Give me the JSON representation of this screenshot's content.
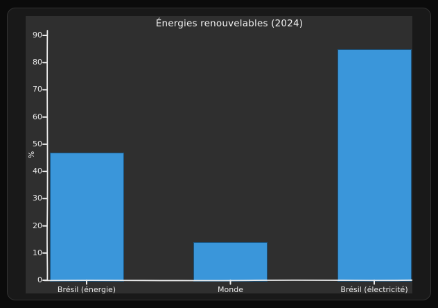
{
  "chart_data": {
    "type": "bar",
    "title": "Énergies renouvelables (2024)",
    "categories": [
      "Brésil (énergie)",
      "Monde",
      "Brésil (électricité)"
    ],
    "values": [
      47,
      14,
      85
    ],
    "xlabel": "",
    "ylabel": "%",
    "ylim": [
      0,
      90
    ],
    "yticks": [
      0,
      10,
      20,
      30,
      40,
      50,
      60,
      70,
      80,
      90
    ],
    "grid": false,
    "legend": false,
    "style": "xkcd-dark"
  },
  "colors": {
    "page_bg": "#0b0b0b",
    "card_bg": "#191919",
    "card_border": "#323232",
    "figure_bg": "#2f2f2f",
    "bar_fill": "#3a96da",
    "bar_edge": "#1a527c",
    "axis_line": "#ececec",
    "text": "#e9e9e9",
    "title_text": "#f2f2f2"
  }
}
